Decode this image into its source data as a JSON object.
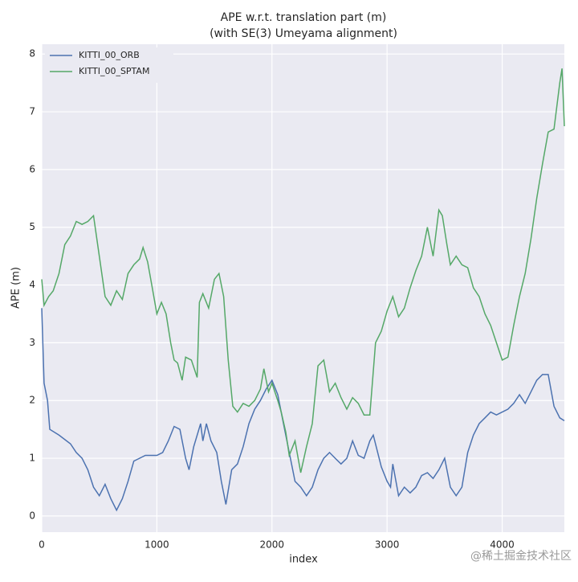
{
  "chart_data": {
    "type": "line",
    "title": "APE w.r.t. translation part (m)",
    "subtitle": "(with SE(3) Umeyama alignment)",
    "x_label": "index",
    "y_label": "APE (m)",
    "xlim": [
      0,
      4540
    ],
    "ylim": [
      -0.28,
      8.17
    ],
    "xticks": [
      0,
      1000,
      2000,
      3000,
      4000
    ],
    "yticks": [
      0,
      1,
      2,
      3,
      4,
      5,
      6,
      7,
      8
    ],
    "grid": true,
    "legend": "upper-left",
    "watermark": "@稀土掘金技术社区",
    "series": [
      {
        "name": "KITTI_00_ORB",
        "color": "#4c72b0",
        "x": [
          0,
          20,
          50,
          70,
          150,
          250,
          300,
          350,
          400,
          450,
          500,
          550,
          600,
          650,
          700,
          750,
          800,
          900,
          1000,
          1050,
          1100,
          1150,
          1200,
          1250,
          1280,
          1320,
          1380,
          1400,
          1430,
          1470,
          1520,
          1560,
          1600,
          1650,
          1700,
          1750,
          1800,
          1850,
          1900,
          1950,
          2000,
          2050,
          2100,
          2150,
          2200,
          2250,
          2300,
          2350,
          2400,
          2450,
          2500,
          2550,
          2600,
          2650,
          2700,
          2750,
          2800,
          2850,
          2880,
          2950,
          3000,
          3030,
          3050,
          3100,
          3150,
          3200,
          3250,
          3300,
          3350,
          3400,
          3450,
          3500,
          3550,
          3600,
          3650,
          3700,
          3750,
          3800,
          3850,
          3900,
          3950,
          4000,
          4050,
          4100,
          4150,
          4200,
          4250,
          4300,
          4350,
          4400,
          4450,
          4500,
          4540
        ],
        "values": [
          3.6,
          2.3,
          2.0,
          1.5,
          1.4,
          1.25,
          1.1,
          1.0,
          0.8,
          0.5,
          0.35,
          0.55,
          0.3,
          0.1,
          0.3,
          0.6,
          0.95,
          1.05,
          1.05,
          1.1,
          1.3,
          1.55,
          1.5,
          1.0,
          0.8,
          1.2,
          1.6,
          1.3,
          1.6,
          1.3,
          1.1,
          0.6,
          0.2,
          0.8,
          0.9,
          1.2,
          1.6,
          1.85,
          2.0,
          2.2,
          2.35,
          2.1,
          1.6,
          1.1,
          0.6,
          0.5,
          0.35,
          0.5,
          0.8,
          1.0,
          1.1,
          1.0,
          0.9,
          1.0,
          1.3,
          1.05,
          1.0,
          1.3,
          1.4,
          0.85,
          0.6,
          0.5,
          0.9,
          0.35,
          0.5,
          0.4,
          0.5,
          0.7,
          0.75,
          0.65,
          0.8,
          1.0,
          0.5,
          0.35,
          0.5,
          1.1,
          1.4,
          1.6,
          1.7,
          1.8,
          1.75,
          1.8,
          1.85,
          1.95,
          2.1,
          1.95,
          2.15,
          2.35,
          2.45,
          2.45,
          1.9,
          1.7,
          1.65
        ]
      },
      {
        "name": "KITTI_00_SPTAM",
        "color": "#55a868",
        "x": [
          0,
          20,
          60,
          100,
          150,
          200,
          250,
          300,
          350,
          400,
          450,
          500,
          550,
          600,
          650,
          700,
          750,
          800,
          850,
          880,
          920,
          960,
          1000,
          1040,
          1080,
          1120,
          1150,
          1180,
          1220,
          1250,
          1300,
          1350,
          1370,
          1400,
          1450,
          1500,
          1540,
          1580,
          1620,
          1660,
          1700,
          1750,
          1800,
          1850,
          1900,
          1930,
          1970,
          2000,
          2050,
          2080,
          2120,
          2150,
          2200,
          2250,
          2300,
          2350,
          2400,
          2450,
          2500,
          2550,
          2600,
          2650,
          2700,
          2750,
          2800,
          2850,
          2900,
          2950,
          3000,
          3050,
          3100,
          3150,
          3200,
          3250,
          3300,
          3350,
          3400,
          3450,
          3480,
          3520,
          3550,
          3600,
          3650,
          3700,
          3750,
          3800,
          3850,
          3900,
          3950,
          4000,
          4050,
          4100,
          4150,
          4200,
          4250,
          4300,
          4350,
          4400,
          4450,
          4500,
          4520,
          4540
        ],
        "values": [
          4.1,
          3.65,
          3.8,
          3.9,
          4.2,
          4.7,
          4.85,
          5.1,
          5.05,
          5.1,
          5.2,
          4.5,
          3.8,
          3.65,
          3.9,
          3.75,
          4.2,
          4.35,
          4.45,
          4.65,
          4.4,
          3.95,
          3.5,
          3.7,
          3.5,
          3.0,
          2.7,
          2.65,
          2.35,
          2.75,
          2.7,
          2.4,
          3.7,
          3.85,
          3.6,
          4.1,
          4.2,
          3.8,
          2.7,
          1.9,
          1.8,
          1.95,
          1.9,
          2.0,
          2.2,
          2.55,
          2.15,
          2.3,
          2.0,
          1.8,
          1.45,
          1.05,
          1.3,
          0.75,
          1.2,
          1.6,
          2.6,
          2.7,
          2.15,
          2.3,
          2.05,
          1.85,
          2.05,
          1.95,
          1.75,
          1.75,
          3.0,
          3.2,
          3.55,
          3.8,
          3.45,
          3.6,
          3.95,
          4.25,
          4.5,
          5.0,
          4.5,
          5.3,
          5.2,
          4.7,
          4.35,
          4.5,
          4.35,
          4.3,
          3.95,
          3.8,
          3.5,
          3.3,
          3.0,
          2.7,
          2.75,
          3.3,
          3.8,
          4.2,
          4.8,
          5.5,
          6.1,
          6.65,
          6.7,
          7.5,
          7.75,
          6.75
        ]
      }
    ]
  }
}
